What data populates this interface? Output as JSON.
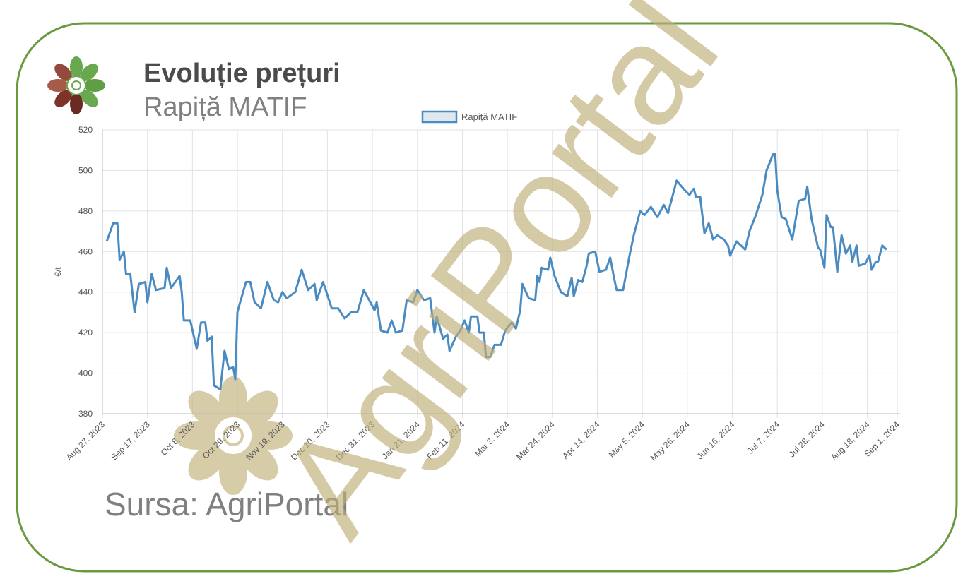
{
  "chart_data": {
    "type": "line",
    "title": "Evoluție prețuri",
    "subtitle": "Rapiță MATIF",
    "ylabel": "€/t",
    "source": "Sursa: AgriPortal",
    "watermark": "AgriPortal",
    "x": [
      "2023-08-29",
      "2023-09-01",
      "2023-09-03",
      "2023-09-04",
      "2023-09-06",
      "2023-09-07",
      "2023-09-09",
      "2023-09-11",
      "2023-09-13",
      "2023-09-16",
      "2023-09-17",
      "2023-09-19",
      "2023-09-21",
      "2023-09-25",
      "2023-09-26",
      "2023-09-28",
      "2023-10-02",
      "2023-10-03",
      "2023-10-04",
      "2023-10-07",
      "2023-10-10",
      "2023-10-12",
      "2023-10-14",
      "2023-10-15",
      "2023-10-17",
      "2023-10-18",
      "2023-10-21",
      "2023-10-23",
      "2023-10-25",
      "2023-10-27",
      "2023-10-28",
      "2023-10-29",
      "2023-10-30",
      "2023-11-02",
      "2023-11-04",
      "2023-11-06",
      "2023-11-09",
      "2023-11-12",
      "2023-11-15",
      "2023-11-17",
      "2023-11-19",
      "2023-11-21",
      "2023-11-25",
      "2023-11-28",
      "2023-12-01",
      "2023-12-04",
      "2023-12-05",
      "2023-12-08",
      "2023-12-12",
      "2023-12-15",
      "2023-12-18",
      "2023-12-21",
      "2023-12-24",
      "2023-12-27",
      "2023-12-29",
      "2024-01-01",
      "2024-01-02",
      "2024-01-04",
      "2024-01-07",
      "2024-01-09",
      "2024-01-11",
      "2024-01-14",
      "2024-01-16",
      "2024-01-19",
      "2024-01-21",
      "2024-01-24",
      "2024-01-27",
      "2024-01-29",
      "2024-01-30",
      "2024-02-02",
      "2024-02-04",
      "2024-02-05",
      "2024-02-08",
      "2024-02-10",
      "2024-02-12",
      "2024-02-14",
      "2024-02-15",
      "2024-02-18",
      "2024-02-19",
      "2024-02-21",
      "2024-02-22",
      "2024-02-24",
      "2024-02-26",
      "2024-02-29",
      "2024-03-02",
      "2024-03-05",
      "2024-03-07",
      "2024-03-09",
      "2024-03-10",
      "2024-03-13",
      "2024-03-16",
      "2024-03-17",
      "2024-03-18",
      "2024-03-19",
      "2024-03-22",
      "2024-03-23",
      "2024-03-25",
      "2024-03-28",
      "2024-03-31",
      "2024-04-02",
      "2024-04-03",
      "2024-04-05",
      "2024-04-07",
      "2024-04-09",
      "2024-04-10",
      "2024-04-13",
      "2024-04-15",
      "2024-04-18",
      "2024-04-20",
      "2024-04-22",
      "2024-04-23",
      "2024-04-26",
      "2024-04-29",
      "2024-05-01",
      "2024-05-04",
      "2024-05-06",
      "2024-05-09",
      "2024-05-12",
      "2024-05-15",
      "2024-05-17",
      "2024-05-21",
      "2024-05-25",
      "2024-05-27",
      "2024-05-29",
      "2024-05-30",
      "2024-06-01",
      "2024-06-03",
      "2024-06-05",
      "2024-06-07",
      "2024-06-09",
      "2024-06-12",
      "2024-06-14",
      "2024-06-15",
      "2024-06-18",
      "2024-06-22",
      "2024-06-24",
      "2024-06-27",
      "2024-06-30",
      "2024-07-02",
      "2024-07-05",
      "2024-07-06",
      "2024-07-07",
      "2024-07-09",
      "2024-07-11",
      "2024-07-14",
      "2024-07-17",
      "2024-07-20",
      "2024-07-21",
      "2024-07-23",
      "2024-07-26",
      "2024-07-27",
      "2024-07-29",
      "2024-07-30",
      "2024-08-01",
      "2024-08-02",
      "2024-08-04",
      "2024-08-06",
      "2024-08-08",
      "2024-08-10",
      "2024-08-11",
      "2024-08-13",
      "2024-08-14",
      "2024-08-17",
      "2024-08-19",
      "2024-08-20",
      "2024-08-22",
      "2024-08-23",
      "2024-08-25",
      "2024-08-27"
    ],
    "series": [
      {
        "name": "Rapiță MATIF",
        "color": "#4a8bc2",
        "values": [
          465,
          474,
          474,
          456,
          460,
          449,
          449,
          430,
          444,
          445,
          435,
          449,
          441,
          442,
          452,
          442,
          448,
          440,
          426,
          426,
          412,
          425,
          425,
          416,
          418,
          394,
          392,
          411,
          402,
          403,
          397,
          430,
          434,
          445,
          445,
          435,
          432,
          445,
          436,
          435,
          440,
          437,
          440,
          451,
          441,
          444,
          436,
          445,
          432,
          432,
          427,
          430,
          430,
          441,
          437,
          431,
          435,
          421,
          420,
          426,
          420,
          421,
          436,
          435,
          441,
          436,
          437,
          420,
          428,
          417,
          419,
          411,
          418,
          421,
          426,
          420,
          428,
          428,
          420,
          420,
          408,
          408,
          414,
          414,
          421,
          425,
          422,
          431,
          444,
          437,
          436,
          448,
          445,
          452,
          451,
          457,
          448,
          440,
          438,
          447,
          438,
          446,
          445,
          453,
          459,
          460,
          450,
          451,
          457,
          446,
          441,
          441,
          458,
          468,
          480,
          478,
          482,
          477,
          483,
          479,
          495,
          490,
          488,
          491,
          487,
          487,
          469,
          474,
          466,
          468,
          466,
          463,
          458,
          465,
          461,
          470,
          478,
          488,
          500,
          508,
          508,
          490,
          477,
          476,
          466,
          485,
          486,
          492,
          476,
          462,
          461,
          452,
          478,
          472,
          472,
          450,
          468,
          459,
          463,
          455,
          463,
          453,
          454,
          458,
          451,
          455,
          455,
          463,
          461
        ]
      }
    ],
    "xlim": [
      "2023-08-27",
      "2024-09-01"
    ],
    "xticks": [
      {
        "value": "2023-08-27",
        "label": "Aug 27, 2023"
      },
      {
        "value": "2023-09-17",
        "label": "Sep 17, 2023"
      },
      {
        "value": "2023-10-08",
        "label": "Oct 8, 2023"
      },
      {
        "value": "2023-10-29",
        "label": "Oct 29, 2023"
      },
      {
        "value": "2023-11-19",
        "label": "Nov 19, 2023"
      },
      {
        "value": "2023-12-10",
        "label": "Dec 10, 2023"
      },
      {
        "value": "2023-12-31",
        "label": "Dec 31, 2023"
      },
      {
        "value": "2024-01-21",
        "label": "Jan 21, 2024"
      },
      {
        "value": "2024-02-11",
        "label": "Feb 11, 2024"
      },
      {
        "value": "2024-03-03",
        "label": "Mar 3, 2024"
      },
      {
        "value": "2024-03-24",
        "label": "Mar 24, 2024"
      },
      {
        "value": "2024-04-14",
        "label": "Apr 14, 2024"
      },
      {
        "value": "2024-05-05",
        "label": "May 5, 2024"
      },
      {
        "value": "2024-05-26",
        "label": "May 26, 2024"
      },
      {
        "value": "2024-06-16",
        "label": "Jun 16, 2024"
      },
      {
        "value": "2024-07-07",
        "label": "Jul 7, 2024"
      },
      {
        "value": "2024-07-28",
        "label": "Jul 28, 2024"
      },
      {
        "value": "2024-08-18",
        "label": "Aug 18, 2024"
      },
      {
        "value": "2024-09-01",
        "label": "Sep 1, 2024"
      }
    ],
    "ylim": [
      380,
      520
    ],
    "yticks": [
      380,
      400,
      420,
      440,
      460,
      480,
      500,
      520
    ],
    "grid": true,
    "legend": "top"
  }
}
